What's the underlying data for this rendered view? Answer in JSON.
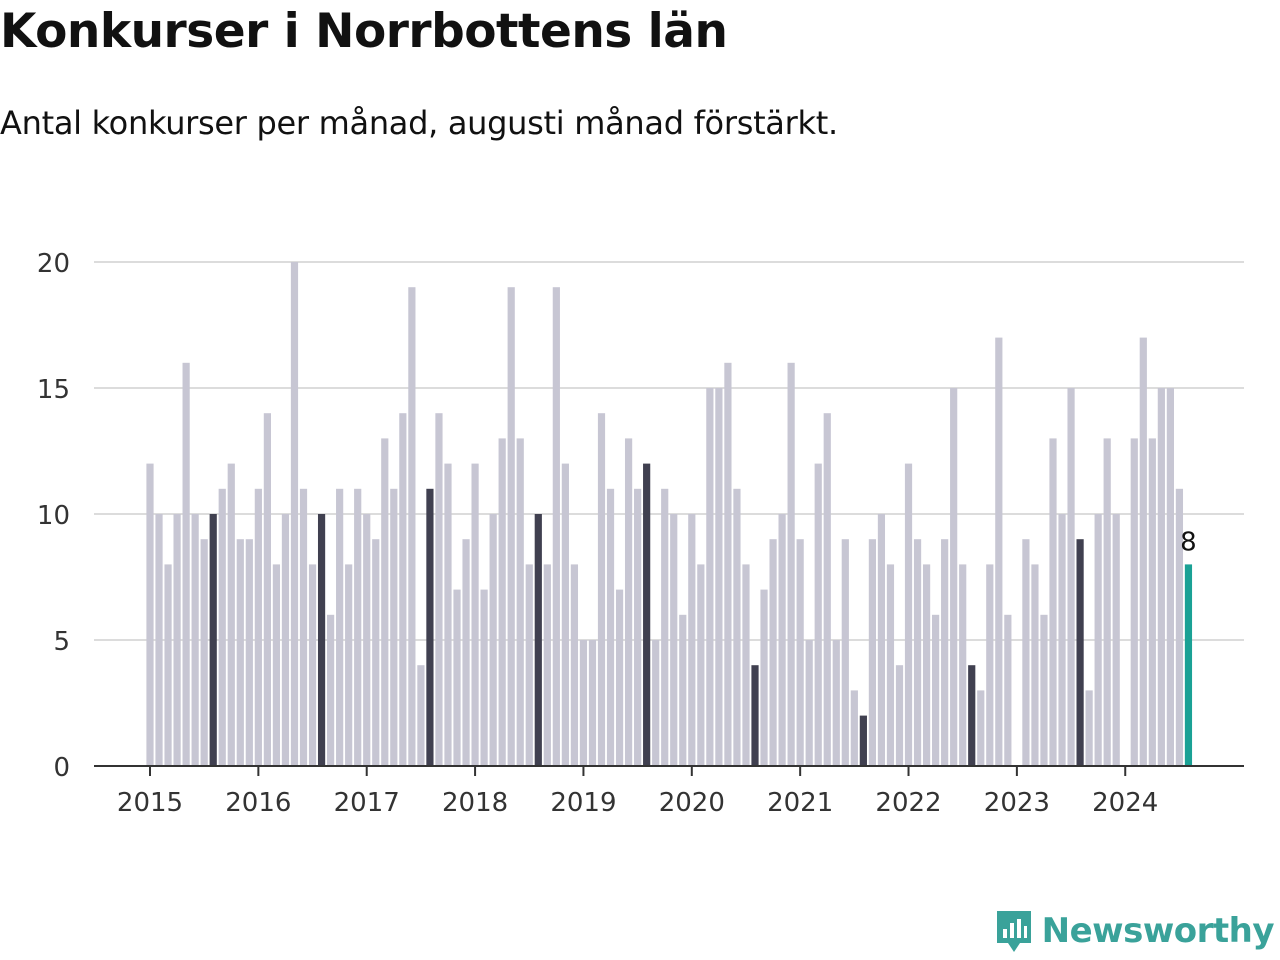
{
  "title": "Konkurser i Norrbottens län",
  "subtitle": "Antal konkurser per månad, augusti månad förstärkt.",
  "brand": {
    "name": "Newsworthy",
    "icon": "newsworthy-logo-icon",
    "color": "#3aa29a"
  },
  "chart_data": {
    "type": "bar",
    "ylim": [
      0,
      20
    ],
    "yticks": [
      "0",
      "5",
      "10",
      "15",
      "20"
    ],
    "xticks": [
      "2015",
      "2016",
      "2017",
      "2018",
      "2019",
      "2020",
      "2021",
      "2022",
      "2023",
      "2024"
    ],
    "grid": true,
    "colors": {
      "default": "#c7c6d3",
      "august": "#404050",
      "latest": "#1aa195"
    },
    "start": "2015-01",
    "highlight_label": "8",
    "values": [
      12,
      10,
      8,
      10,
      16,
      10,
      9,
      10,
      11,
      12,
      9,
      9,
      11,
      14,
      8,
      10,
      20,
      11,
      8,
      10,
      6,
      11,
      8,
      11,
      10,
      9,
      13,
      11,
      14,
      19,
      4,
      11,
      14,
      12,
      7,
      9,
      12,
      7,
      10,
      13,
      19,
      13,
      8,
      10,
      8,
      19,
      12,
      8,
      5,
      5,
      14,
      11,
      7,
      13,
      11,
      12,
      5,
      11,
      10,
      6,
      10,
      8,
      15,
      15,
      16,
      11,
      8,
      4,
      7,
      9,
      10,
      16,
      9,
      5,
      12,
      14,
      5,
      9,
      3,
      2,
      9,
      10,
      8,
      4,
      12,
      9,
      8,
      6,
      9,
      15,
      8,
      4,
      3,
      8,
      17,
      6,
      0,
      9,
      8,
      6,
      13,
      10,
      15,
      9,
      3,
      10,
      13,
      10,
      0,
      13,
      17,
      13,
      15,
      15,
      11,
      8
    ]
  }
}
